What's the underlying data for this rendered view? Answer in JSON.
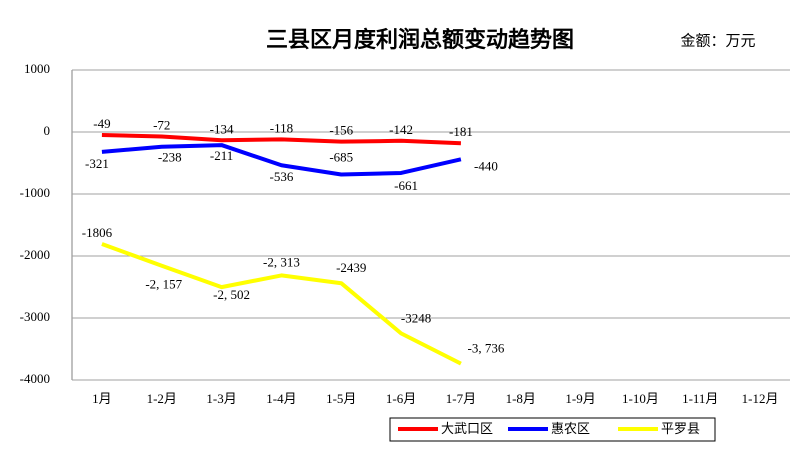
{
  "chart_data": {
    "type": "line",
    "title": "三县区月度利润总额变动趋势图",
    "subtitle": "金额：万元",
    "categories": [
      "1月",
      "1-2月",
      "1-3月",
      "1-4月",
      "1-5月",
      "1-6月",
      "1-7月",
      "1-8月",
      "1-9月",
      "1-10月",
      "1-11月",
      "1-12月"
    ],
    "series": [
      {
        "name": "大武口区",
        "color": "#ff0000",
        "values": [
          -49,
          -72,
          -134,
          -118,
          -156,
          -142,
          -181,
          null,
          null,
          null,
          null,
          null
        ]
      },
      {
        "name": "惠农区",
        "color": "#0000ff",
        "values": [
          -321,
          -238,
          -211,
          -536,
          -685,
          -661,
          -440,
          null,
          null,
          null,
          null,
          null
        ]
      },
      {
        "name": "平罗县",
        "color": "#ffff00",
        "values": [
          -1806,
          -2157,
          -2502,
          -2313,
          -2439,
          -3248,
          -3736,
          null,
          null,
          null,
          null,
          null
        ],
        "value_labels": [
          "-1806",
          "-2, 157",
          "-2, 502",
          "-2, 313",
          "-2439",
          "-3248",
          "-3, 736",
          null,
          null,
          null,
          null,
          null
        ]
      }
    ],
    "ylim": [
      -4000,
      1000
    ],
    "yticks": [
      -4000,
      -3000,
      -2000,
      -1000,
      0,
      1000
    ],
    "grid": true,
    "legend": "bottom"
  }
}
